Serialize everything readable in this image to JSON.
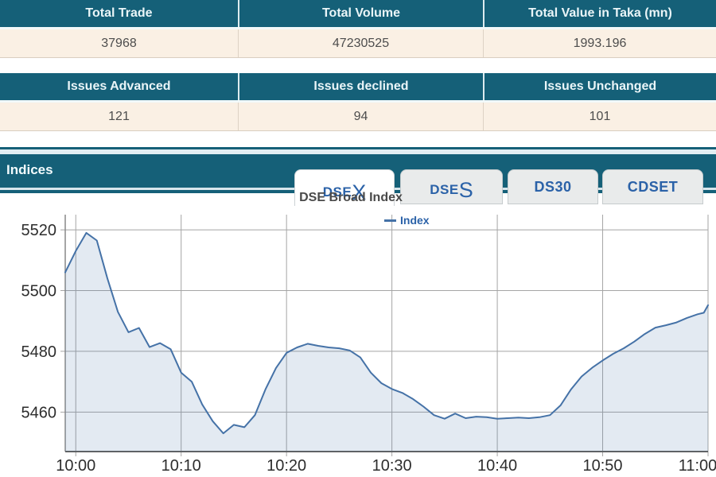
{
  "summary_table_1": {
    "headers": [
      "Total Trade",
      "Total Volume",
      "Total Value in Taka (mn)"
    ],
    "values": [
      "37968",
      "47230525",
      "1993.196"
    ]
  },
  "summary_table_2": {
    "headers": [
      "Issues Advanced",
      "Issues declined",
      "Issues Unchanged"
    ],
    "values": [
      "121",
      "94",
      "101"
    ]
  },
  "indices_section": {
    "title": "Indices",
    "tabs": [
      {
        "prefix": "DSE",
        "suffix": "X",
        "active": true
      },
      {
        "prefix": "DSE",
        "suffix": "S",
        "active": false
      },
      {
        "label": "DS30",
        "active": false
      },
      {
        "label": "CDSET",
        "active": false
      }
    ]
  },
  "colors": {
    "teal": "#156078",
    "cream_row": "#faf0e4",
    "tab_text_blue": "#2b62a8",
    "series_line": "#4572A7",
    "grid": "#a5a5a5"
  },
  "chart_data": {
    "type": "area",
    "title": "DSE Broad Index",
    "legend": [
      {
        "name": "Index",
        "color": "#4572A7"
      }
    ],
    "legend_position": "top-center-inside",
    "grid": true,
    "x_unit": "minutes after 10:00",
    "xlim": [
      -1,
      60
    ],
    "ylim": [
      5447,
      5525
    ],
    "yticks": [
      5460,
      5480,
      5500,
      5520
    ],
    "xticks": [
      {
        "t": 0,
        "label": "10:00"
      },
      {
        "t": 10,
        "label": "10:10"
      },
      {
        "t": 20,
        "label": "10:20"
      },
      {
        "t": 30,
        "label": "10:30"
      },
      {
        "t": 40,
        "label": "10:40"
      },
      {
        "t": 50,
        "label": "10:50"
      },
      {
        "t": 60,
        "label": "11:00"
      }
    ],
    "x": [
      -1,
      0,
      1,
      2,
      3,
      4,
      5,
      6,
      7,
      8,
      9,
      10,
      11,
      12,
      13,
      14,
      15,
      16,
      17,
      18,
      19,
      20,
      21,
      22,
      23,
      24,
      25,
      26,
      27,
      28,
      29,
      30,
      31,
      32,
      33,
      34,
      35,
      36,
      37,
      38,
      39,
      40,
      41,
      42,
      43,
      44,
      45,
      46,
      47,
      48,
      49,
      50,
      51,
      52,
      53,
      54,
      55,
      56,
      57,
      58,
      59,
      59.6,
      60
    ],
    "series": [
      {
        "name": "Index",
        "values": [
          5506,
          5513,
          5519,
          5516.5,
          5504,
          5493,
          5486.3,
          5487.7,
          5481.4,
          5482.7,
          5480.7,
          5473,
          5470,
          5462.5,
          5457,
          5453,
          5455.8,
          5455,
          5459,
          5467.5,
          5474.5,
          5479.5,
          5481.3,
          5482.5,
          5481.8,
          5481.3,
          5481,
          5480.3,
          5478,
          5473,
          5469.5,
          5467.6,
          5466.3,
          5464.3,
          5461.8,
          5459,
          5457.8,
          5459.5,
          5458,
          5458.5,
          5458.3,
          5457.8,
          5458,
          5458.2,
          5458,
          5458.3,
          5459,
          5462.2,
          5467.5,
          5471.7,
          5474.6,
          5477,
          5479.2,
          5481,
          5483.2,
          5485.7,
          5487.8,
          5488.6,
          5489.5,
          5491,
          5492.2,
          5492.7,
          5495.2
        ]
      }
    ]
  }
}
